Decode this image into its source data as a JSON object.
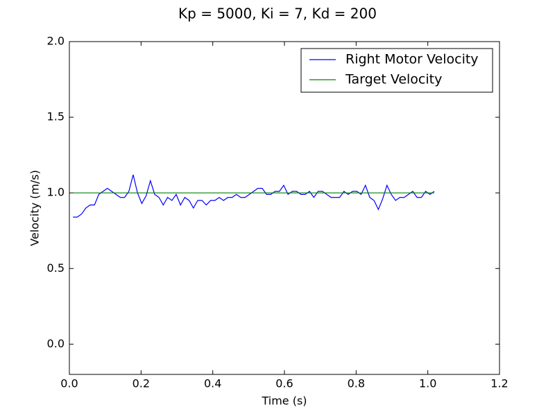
{
  "chart_data": {
    "type": "line",
    "title": "Kp = 5000, Ki = 7, Kd = 200",
    "x_label": "Time (s)",
    "y_label": "Velocity (m/s)",
    "xlim": [
      0.0,
      1.2
    ],
    "ylim": [
      -0.2,
      2.0
    ],
    "xticks": [
      {
        "value": 0,
        "label": "0.0"
      },
      {
        "value": 0.2,
        "label": "0.2"
      },
      {
        "value": 0.4,
        "label": "0.4"
      },
      {
        "value": 0.6,
        "label": "0.6"
      },
      {
        "value": 0.8,
        "label": "0.8"
      },
      {
        "value": 1,
        "label": "1.0"
      },
      {
        "value": 1.2,
        "label": "1.2"
      }
    ],
    "yticks": [
      {
        "value": 0,
        "label": "0.0"
      },
      {
        "value": 0.5,
        "label": "0.5"
      },
      {
        "value": 1,
        "label": "1.0"
      },
      {
        "value": 1.5,
        "label": "1.5"
      },
      {
        "value": 2,
        "label": "2.0"
      }
    ],
    "legend": "upper right",
    "series": [
      {
        "name": "Right Motor Velocity",
        "color": "#0000ff",
        "x": [
          0.01,
          0.022,
          0.034,
          0.046,
          0.058,
          0.07,
          0.082,
          0.094,
          0.106,
          0.118,
          0.13,
          0.142,
          0.154,
          0.166,
          0.178,
          0.19,
          0.202,
          0.214,
          0.226,
          0.238,
          0.25,
          0.262,
          0.274,
          0.286,
          0.298,
          0.31,
          0.322,
          0.334,
          0.346,
          0.358,
          0.37,
          0.382,
          0.394,
          0.406,
          0.418,
          0.43,
          0.442,
          0.454,
          0.466,
          0.478,
          0.49,
          0.502,
          0.514,
          0.526,
          0.538,
          0.55,
          0.562,
          0.574,
          0.586,
          0.598,
          0.61,
          0.622,
          0.634,
          0.646,
          0.658,
          0.67,
          0.682,
          0.694,
          0.706,
          0.718,
          0.73,
          0.742,
          0.754,
          0.766,
          0.778,
          0.79,
          0.802,
          0.814,
          0.826,
          0.838,
          0.85,
          0.862,
          0.874,
          0.886,
          0.898,
          0.91,
          0.922,
          0.934,
          0.946,
          0.958,
          0.97,
          0.982,
          0.994,
          1.006,
          1.018
        ],
        "values": [
          0.84,
          0.84,
          0.86,
          0.9,
          0.92,
          0.92,
          0.99,
          1.01,
          1.03,
          1.01,
          0.99,
          0.97,
          0.97,
          1.01,
          1.12,
          1.0,
          0.93,
          0.98,
          1.08,
          0.99,
          0.97,
          0.92,
          0.97,
          0.95,
          0.99,
          0.92,
          0.97,
          0.95,
          0.9,
          0.95,
          0.95,
          0.92,
          0.95,
          0.95,
          0.97,
          0.95,
          0.97,
          0.97,
          0.99,
          0.97,
          0.97,
          0.99,
          1.01,
          1.03,
          1.03,
          0.99,
          0.99,
          1.01,
          1.01,
          1.05,
          0.99,
          1.01,
          1.01,
          0.99,
          0.99,
          1.01,
          0.97,
          1.01,
          1.01,
          0.99,
          0.97,
          0.97,
          0.97,
          1.01,
          0.99,
          1.01,
          1.01,
          0.99,
          1.05,
          0.97,
          0.95,
          0.89,
          0.96,
          1.05,
          0.99,
          0.95,
          0.97,
          0.97,
          0.99,
          1.01,
          0.97,
          0.97,
          1.01,
          0.99,
          1.01
        ]
      },
      {
        "name": "Target Velocity",
        "color": "#008000",
        "x": [
          0.01,
          1.018
        ],
        "values": [
          1.0,
          1.0
        ]
      }
    ]
  }
}
